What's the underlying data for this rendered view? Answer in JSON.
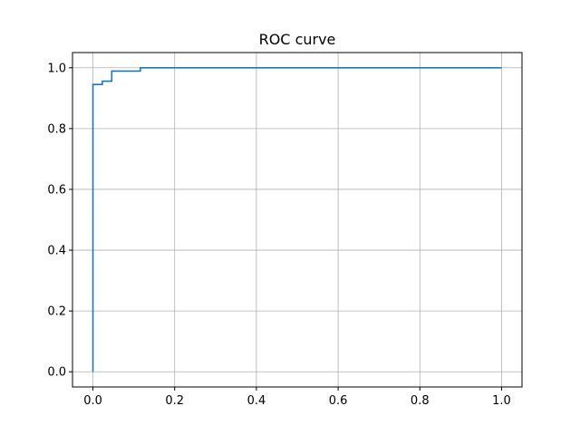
{
  "chart_data": {
    "type": "line",
    "title": "ROC curve",
    "xlabel": "",
    "ylabel": "",
    "xlim": [
      -0.05,
      1.05
    ],
    "ylim": [
      -0.05,
      1.05
    ],
    "xticks": [
      0.0,
      0.2,
      0.4,
      0.6,
      0.8,
      1.0
    ],
    "yticks": [
      0.0,
      0.2,
      0.4,
      0.6,
      0.8,
      1.0
    ],
    "xtick_labels": [
      "0.0",
      "0.2",
      "0.4",
      "0.6",
      "0.8",
      "1.0"
    ],
    "ytick_labels": [
      "0.0",
      "0.2",
      "0.4",
      "0.6",
      "0.8",
      "1.0"
    ],
    "grid": true,
    "legend": "none",
    "series": [
      {
        "color": "#1f77b4",
        "x": [
          0.0,
          0.0,
          0.023,
          0.023,
          0.046,
          0.046,
          0.116,
          0.116,
          1.0
        ],
        "y": [
          0.0,
          0.945,
          0.945,
          0.956,
          0.956,
          0.989,
          0.989,
          1.0,
          1.0
        ]
      }
    ]
  }
}
